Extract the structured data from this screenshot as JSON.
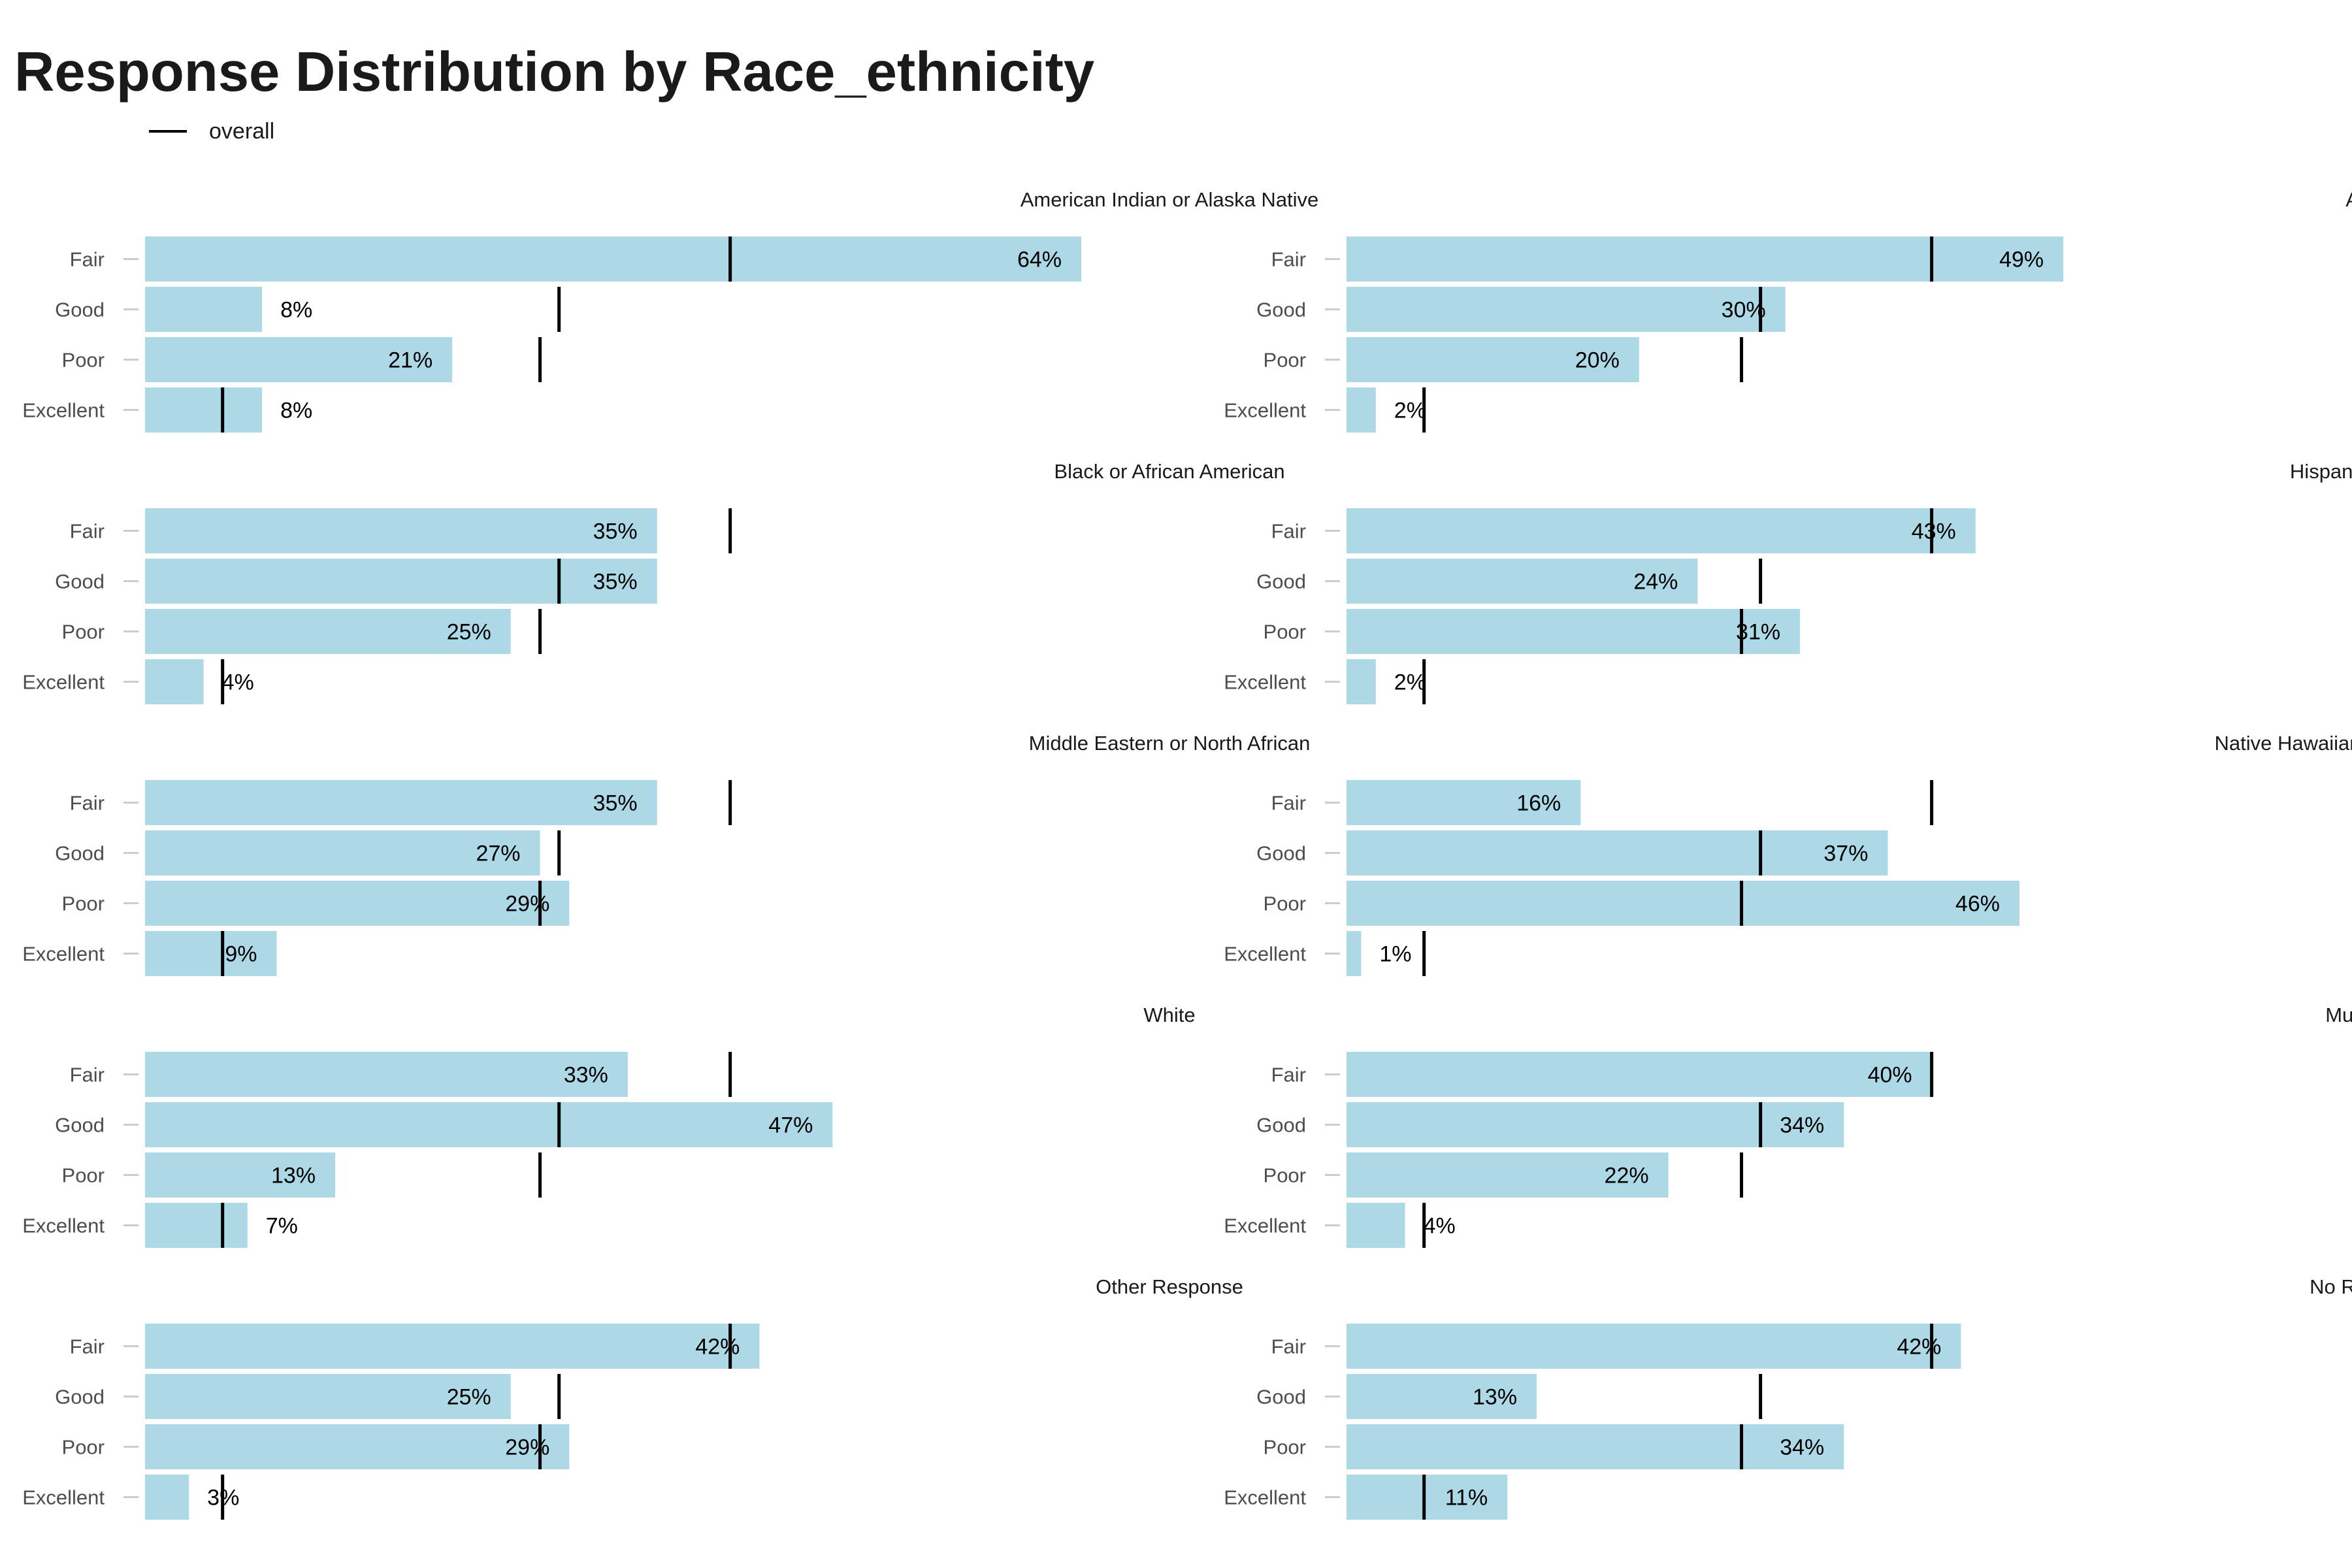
{
  "title": "Response Distribution by Race_ethnicity",
  "legend": {
    "label": "overall",
    "marker": "line",
    "color": "#000000"
  },
  "colors": {
    "bar": "#add8e6",
    "overall_marker": "#000000",
    "tick_label": "#4d4d4d"
  },
  "chart_data": {
    "type": "bar",
    "orientation": "horizontal",
    "layout": "faceted 5 rows x 2 columns",
    "categories": [
      "Fair",
      "Good",
      "Poor",
      "Excellent"
    ],
    "overall": {
      "Fair": 0.4,
      "Good": 0.283,
      "Poor": 0.27,
      "Excellent": 0.053
    },
    "xlim": [
      0,
      0.66
    ],
    "grid": false,
    "legend_position": "top-left",
    "facets": [
      {
        "name": "American Indian or Alaska Native",
        "values": [
          0.64,
          0.08,
          0.21,
          0.08
        ],
        "labels": [
          "64%",
          "8%",
          "21%",
          "8%"
        ]
      },
      {
        "name": "Asian",
        "values": [
          0.49,
          0.3,
          0.2,
          0.02
        ],
        "labels": [
          "49%",
          "30%",
          "20%",
          "2%"
        ]
      },
      {
        "name": "Black or African American",
        "values": [
          0.35,
          0.35,
          0.25,
          0.04
        ],
        "labels": [
          "35%",
          "35%",
          "25%",
          "4%"
        ]
      },
      {
        "name": "Hispanic or Latino",
        "values": [
          0.43,
          0.24,
          0.31,
          0.02
        ],
        "labels": [
          "43%",
          "24%",
          "31%",
          "2%"
        ]
      },
      {
        "name": "Middle Eastern or North African",
        "values": [
          0.35,
          0.27,
          0.29,
          0.09
        ],
        "labels": [
          "35%",
          "27%",
          "29%",
          "9%"
        ]
      },
      {
        "name": "Native Hawaiian or Pacific Islander",
        "values": [
          0.16,
          0.37,
          0.46,
          0.01
        ],
        "labels": [
          "16%",
          "37%",
          "46%",
          "1%"
        ]
      },
      {
        "name": "White",
        "values": [
          0.33,
          0.47,
          0.13,
          0.07
        ],
        "labels": [
          "33%",
          "47%",
          "13%",
          "7%"
        ]
      },
      {
        "name": "Multiracial",
        "values": [
          0.4,
          0.34,
          0.22,
          0.04
        ],
        "labels": [
          "40%",
          "34%",
          "22%",
          "4%"
        ]
      },
      {
        "name": "Other Response",
        "values": [
          0.42,
          0.25,
          0.29,
          0.03
        ],
        "labels": [
          "42%",
          "25%",
          "29%",
          "3%"
        ]
      },
      {
        "name": "No Response",
        "values": [
          0.42,
          0.13,
          0.34,
          0.11
        ],
        "labels": [
          "42%",
          "13%",
          "34%",
          "11%"
        ]
      }
    ]
  }
}
